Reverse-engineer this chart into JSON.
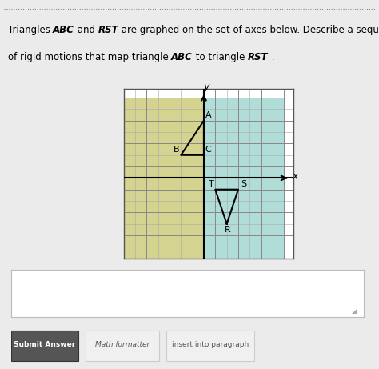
{
  "triangle_ABC": {
    "A": [
      0,
      5
    ],
    "B": [
      -2,
      2
    ],
    "C": [
      0,
      2
    ]
  },
  "triangle_RST": {
    "R": [
      2,
      -4
    ],
    "S": [
      3,
      -1
    ],
    "T": [
      1,
      -1
    ]
  },
  "axis_range": [
    -7,
    7
  ],
  "grid_color_left": "#c8c87a",
  "grid_color_right": "#a0d8d0",
  "grid_line_color": "#999966",
  "grid_line_color_right": "#7bbbb0",
  "background_left": "#d8d890",
  "background_right": "#b8e8e0",
  "triangle_color": "#000000",
  "label_fontsize": 8,
  "axis_fontsize": 9,
  "text_color": "#000000",
  "fig_bg": "#e8e8e8"
}
